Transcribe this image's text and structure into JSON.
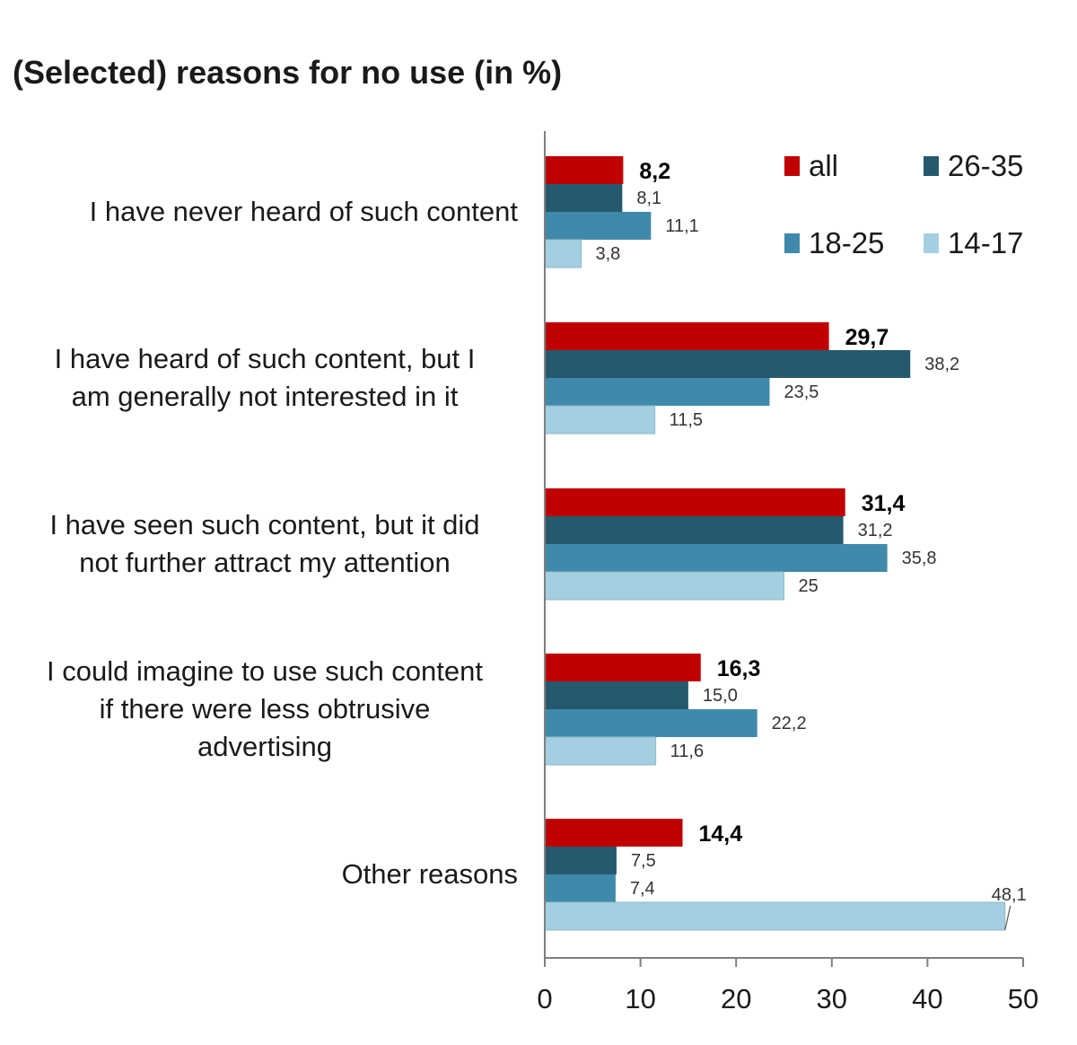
{
  "chart_data": {
    "type": "bar",
    "orientation": "horizontal",
    "title": "(Selected) reasons for no use (in %)",
    "xlabel": "",
    "ylabel": "",
    "xlim": [
      0,
      50
    ],
    "ticks": [
      0,
      10,
      20,
      30,
      40,
      50
    ],
    "grid": false,
    "legend_position": "top-right",
    "categories": [
      "I have never heard of such content",
      "I have heard of such content, but I am generally not interested in it",
      "I have seen such content, but it did not further attract my attention",
      "I could imagine to use such content if there were less obtrusive advertising",
      "Other reasons"
    ],
    "category_lines": [
      [
        "I have never heard of such content"
      ],
      [
        "I have heard of such content, but I",
        "am generally not interested in it"
      ],
      [
        "I have seen such content, but it did",
        "not further attract my attention"
      ],
      [
        "I could imagine to use such content",
        "if there were less obtrusive",
        "advertising"
      ],
      [
        "Other reasons"
      ]
    ],
    "series": [
      {
        "name": "all",
        "color": "#c00000",
        "values": [
          8.2,
          29.7,
          31.4,
          16.3,
          14.4
        ],
        "labels": [
          "8,2",
          "29,7",
          "31,4",
          "16,3",
          "14,4"
        ],
        "bold": true
      },
      {
        "name": "26-35",
        "color": "#255a6e",
        "values": [
          8.1,
          38.2,
          31.2,
          15.0,
          7.5
        ],
        "labels": [
          "8,1",
          "38,2",
          "31,2",
          "15,0",
          "7,5"
        ],
        "bold": false
      },
      {
        "name": "18-25",
        "color": "#3f8aab",
        "values": [
          11.1,
          23.5,
          35.8,
          22.2,
          7.4
        ],
        "labels": [
          "11,1",
          "23,5",
          "35,8",
          "22,2",
          "7,4"
        ],
        "bold": false
      },
      {
        "name": "14-17",
        "color": "#a3cfe0",
        "values": [
          3.8,
          11.5,
          25,
          11.6,
          48.1
        ],
        "labels": [
          "3,8",
          "11,5",
          "25",
          "11,6",
          "48,1"
        ],
        "bold": false
      }
    ],
    "legend_order": [
      "all",
      "26-35",
      "18-25",
      "14-17"
    ]
  }
}
